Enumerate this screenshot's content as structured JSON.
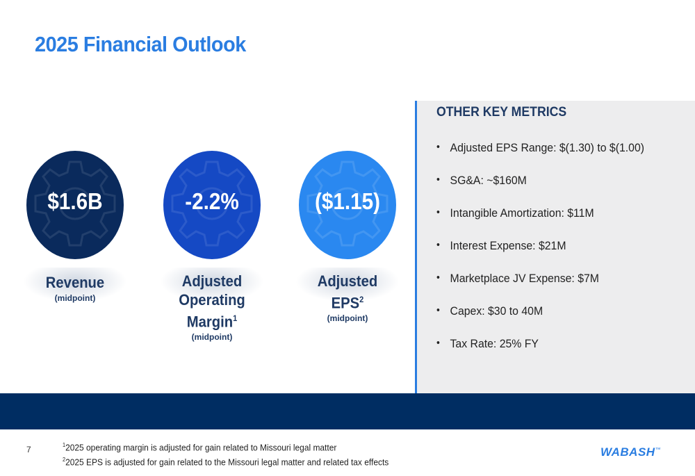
{
  "slide": {
    "title": "2025 Financial Outlook",
    "page_number": "7"
  },
  "kpis": [
    {
      "value": "$1.6B",
      "label": "Revenue",
      "sub": "(midpoint)",
      "color": "#0a2a5c"
    },
    {
      "value": "-2.2%",
      "label_line1": "Adjusted",
      "label_line2": "Operating",
      "label_line3": "Margin",
      "sup": "1",
      "sub": "(midpoint)",
      "color": "#1549c4"
    },
    {
      "value": "($1.15)",
      "label_line1": "Adjusted",
      "label_line2": "EPS",
      "sup": "2",
      "sub": "(midpoint)",
      "color": "#2a88f0"
    }
  ],
  "other_metrics": {
    "heading": "OTHER KEY METRICS",
    "items": [
      "Adjusted EPS Range: $(1.30) to $(1.00)",
      "SG&A: ~$160M",
      "Intangible Amortization: $11M",
      "Interest Expense: $21M",
      "Marketplace JV Expense: $7M",
      "Capex: $30 to 40M",
      "Tax Rate: 25% FY"
    ]
  },
  "footnotes": {
    "note1_num": "1",
    "note1": "2025 operating margin is adjusted for gain related to Missouri legal matter",
    "note2_num": "2",
    "note2": "2025 EPS is adjusted for gain related to the Missouri legal matter and related tax effects"
  },
  "logo": {
    "text": "WABASH",
    "tm": "™"
  },
  "colors": {
    "accent": "#2a7de1",
    "navy": "#002d62",
    "panel": "#ededee"
  }
}
